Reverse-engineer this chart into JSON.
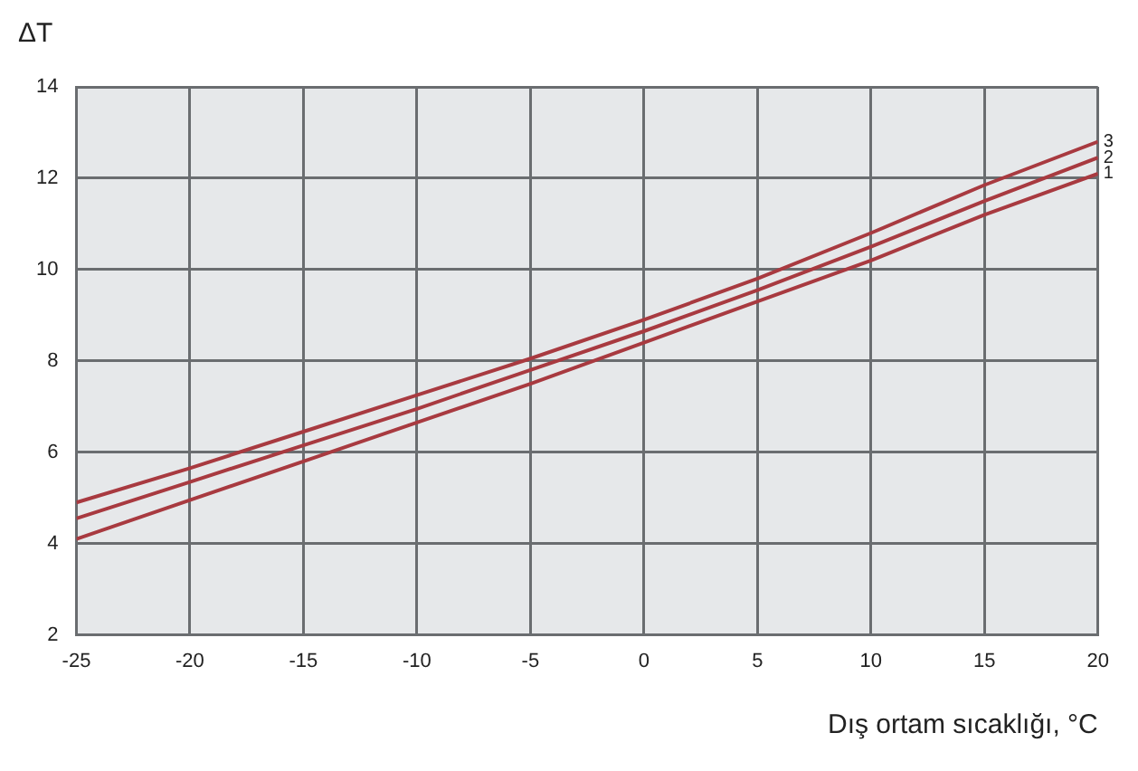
{
  "chart_data": {
    "type": "line",
    "xlabel": "Dış ortam sıcaklığı, °C",
    "ylabel": "ΔT",
    "x": [
      -25,
      -20,
      -15,
      -10,
      -5,
      0,
      5,
      10,
      15,
      20
    ],
    "series": [
      {
        "name": "1",
        "color": "#a83a40",
        "values": [
          4.1,
          4.95,
          5.8,
          6.65,
          7.5,
          8.4,
          9.3,
          10.2,
          11.2,
          12.1
        ]
      },
      {
        "name": "2",
        "color": "#a83a40",
        "values": [
          4.55,
          5.35,
          6.15,
          6.95,
          7.8,
          8.65,
          9.55,
          10.5,
          11.5,
          12.45
        ]
      },
      {
        "name": "3",
        "color": "#a83a40",
        "values": [
          4.9,
          5.65,
          6.45,
          7.25,
          8.05,
          8.9,
          9.8,
          10.8,
          11.85,
          12.8
        ]
      }
    ],
    "xlim": [
      -25,
      20
    ],
    "xticks": [
      -25,
      -20,
      -15,
      -10,
      -5,
      0,
      5,
      10,
      15,
      20
    ],
    "ylim": [
      2,
      14
    ],
    "yticks": [
      2,
      4,
      6,
      8,
      10,
      12,
      14
    ],
    "grid": true,
    "legend": false,
    "marker": "none",
    "line_style": "solid"
  }
}
